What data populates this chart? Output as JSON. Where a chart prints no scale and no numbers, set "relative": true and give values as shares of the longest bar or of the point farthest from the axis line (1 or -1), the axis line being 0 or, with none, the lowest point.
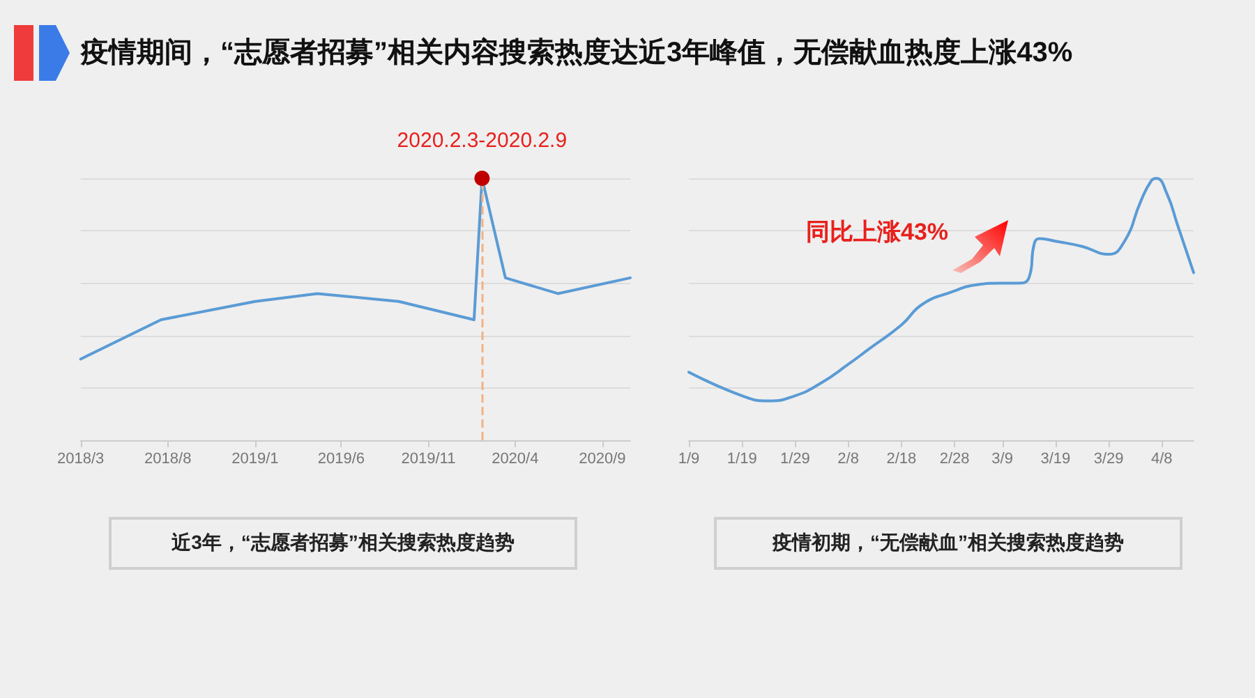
{
  "chart_data": [
    {
      "type": "line",
      "title": "近3年，“志愿者招募”相关搜索热度趋势",
      "relative": true,
      "grid": "y",
      "marker": "none",
      "line_style": "solid",
      "annotations": [
        "疫情期间，“志愿者招募”相关内容搜索热度达近3年峰值，无偿献血热度上涨43%",
        {
          "text": "2020.2.3-2020.2.9",
          "x": "2020-02-03",
          "y": 1
        }
      ],
      "x": [
        "2018-03",
        "2018-07-20",
        "2019-01",
        "2019-04-20",
        "2019-09-10",
        "2020-01-20",
        "2020-02-03",
        "2020-03-15",
        "2020-06-15",
        "2020-10-20"
      ],
      "series": [
        {
          "color": "#5a9bd5",
          "values": [
            0.31,
            0.46,
            0.53,
            0.56,
            0.53,
            0.46,
            1,
            0.62,
            0.56,
            0.62
          ]
        }
      ],
      "xlim": [
        "2018-03",
        "2020-10-20"
      ],
      "xticks": [
        {
          "value": "2018-03",
          "label": "2018/3"
        },
        {
          "value": "2018-08",
          "label": "2018/8"
        },
        {
          "value": "2019-01",
          "label": "2019/1"
        },
        {
          "value": "2019-06",
          "label": "2019/6"
        },
        {
          "value": "2019-11",
          "label": "2019/11"
        },
        {
          "value": "2020-04",
          "label": "2020/4"
        },
        {
          "value": "2020-09",
          "label": "2020/9"
        }
      ],
      "ref_lines": [
        {
          "axis": "x",
          "value": "2020-02-03",
          "label": null,
          "color": "#f4b183",
          "line_style": "dashed"
        }
      ]
    },
    {
      "type": "line",
      "title": "疫情初期，“无偿献血”相关搜索热度趋势",
      "relative": true,
      "grid": "y",
      "marker": "none",
      "line_style": "solid",
      "annotations": [
        "同比上涨43%"
      ],
      "x": [
        "--01-09",
        "--01-19",
        "--01-24",
        "--01-29",
        "--02-03",
        "--02-08",
        "--02-12",
        "--02-18",
        "--02-22",
        "--02-28",
        "--03-03",
        "--03-09",
        "--03-12",
        "--03-14",
        "--03-15",
        "--03-16",
        "--03-19",
        "--03-24",
        "--03-29",
        "--04-01",
        "--04-04",
        "--04-06",
        "--04-07",
        "--04-09",
        "--04-11",
        "--04-14"
      ],
      "series": [
        {
          "color": "#5a9bd5",
          "values": [
            0.26,
            0.17,
            0.15,
            0.17,
            0.22,
            0.29,
            0.35,
            0.44,
            0.52,
            0.57,
            0.59,
            0.6,
            0.6,
            0.62,
            0.75,
            0.77,
            0.76,
            0.74,
            0.71,
            0.76,
            0.91,
            0.99,
            1,
            0.94,
            0.82,
            0.64
          ]
        }
      ],
      "xlim": [
        "--01-09",
        "--04-14"
      ],
      "xticks": [
        {
          "value": "--01-09",
          "label": "1/9"
        },
        {
          "value": "--01-19",
          "label": "1/19"
        },
        {
          "value": "--01-29",
          "label": "1/29"
        },
        {
          "value": "--02-08",
          "label": "2/8"
        },
        {
          "value": "--02-18",
          "label": "2/18"
        },
        {
          "value": "--02-28",
          "label": "2/28"
        },
        {
          "value": "--03-09",
          "label": "3/9"
        },
        {
          "value": "--03-19",
          "label": "3/19"
        },
        {
          "value": "--03-29",
          "label": "3/29"
        },
        {
          "value": "--04-08",
          "label": "4/8"
        }
      ]
    }
  ]
}
